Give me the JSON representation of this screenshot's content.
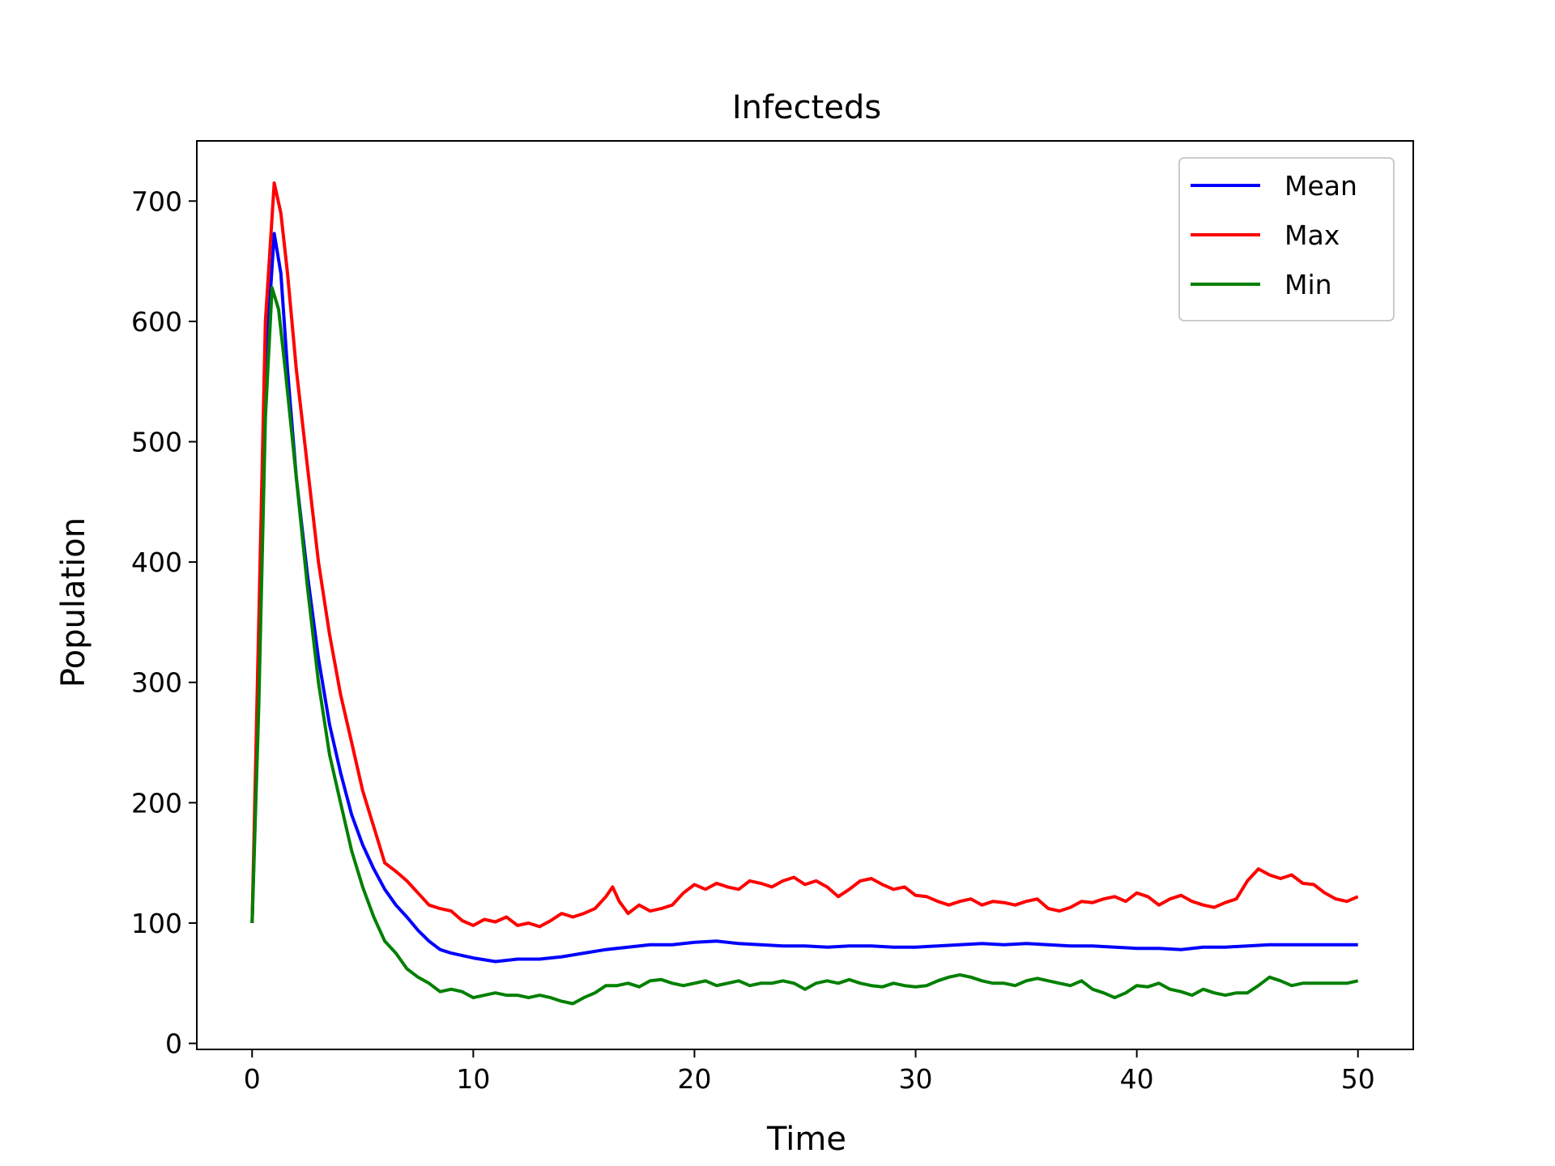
{
  "chart_data": {
    "type": "line",
    "title": "Infecteds",
    "xlabel": "Time",
    "ylabel": "Population",
    "xlim": [
      -2.5,
      52.5
    ],
    "ylim": [
      -5,
      750
    ],
    "xticks": [
      0,
      10,
      20,
      30,
      40,
      50
    ],
    "yticks": [
      0,
      100,
      200,
      300,
      400,
      500,
      600,
      700
    ],
    "grid": false,
    "legend": "top-right",
    "series": [
      {
        "name": "Mean",
        "color": "#0000ff",
        "points": [
          [
            0,
            100
          ],
          [
            0.3,
            300
          ],
          [
            0.6,
            560
          ],
          [
            1.0,
            673
          ],
          [
            1.3,
            640
          ],
          [
            1.6,
            560
          ],
          [
            2,
            470
          ],
          [
            2.5,
            390
          ],
          [
            3,
            320
          ],
          [
            3.5,
            265
          ],
          [
            4,
            225
          ],
          [
            4.5,
            190
          ],
          [
            5,
            165
          ],
          [
            5.5,
            145
          ],
          [
            6,
            128
          ],
          [
            6.5,
            115
          ],
          [
            7,
            105
          ],
          [
            7.5,
            94
          ],
          [
            8,
            85
          ],
          [
            8.5,
            78
          ],
          [
            9,
            75
          ],
          [
            10,
            71
          ],
          [
            11,
            68
          ],
          [
            12,
            70
          ],
          [
            13,
            70
          ],
          [
            14,
            72
          ],
          [
            15,
            75
          ],
          [
            16,
            78
          ],
          [
            17,
            80
          ],
          [
            18,
            82
          ],
          [
            19,
            82
          ],
          [
            20,
            84
          ],
          [
            21,
            85
          ],
          [
            22,
            83
          ],
          [
            23,
            82
          ],
          [
            24,
            81
          ],
          [
            25,
            81
          ],
          [
            26,
            80
          ],
          [
            27,
            81
          ],
          [
            28,
            81
          ],
          [
            29,
            80
          ],
          [
            30,
            80
          ],
          [
            31,
            81
          ],
          [
            32,
            82
          ],
          [
            33,
            83
          ],
          [
            34,
            82
          ],
          [
            35,
            83
          ],
          [
            36,
            82
          ],
          [
            37,
            81
          ],
          [
            38,
            81
          ],
          [
            39,
            80
          ],
          [
            40,
            79
          ],
          [
            41,
            79
          ],
          [
            42,
            78
          ],
          [
            43,
            80
          ],
          [
            44,
            80
          ],
          [
            45,
            81
          ],
          [
            46,
            82
          ],
          [
            47,
            82
          ],
          [
            48,
            82
          ],
          [
            49,
            82
          ],
          [
            50,
            82
          ]
        ]
      },
      {
        "name": "Max",
        "color": "#ff0000",
        "points": [
          [
            0,
            100
          ],
          [
            0.3,
            350
          ],
          [
            0.6,
            600
          ],
          [
            1.0,
            715
          ],
          [
            1.3,
            690
          ],
          [
            1.6,
            640
          ],
          [
            2,
            560
          ],
          [
            2.5,
            480
          ],
          [
            3,
            400
          ],
          [
            3.5,
            340
          ],
          [
            4,
            290
          ],
          [
            4.5,
            250
          ],
          [
            5,
            210
          ],
          [
            5.5,
            180
          ],
          [
            6,
            150
          ],
          [
            6.5,
            143
          ],
          [
            7,
            135
          ],
          [
            7.5,
            125
          ],
          [
            8,
            115
          ],
          [
            8.5,
            112
          ],
          [
            9,
            110
          ],
          [
            9.5,
            102
          ],
          [
            10,
            98
          ],
          [
            10.5,
            103
          ],
          [
            11,
            101
          ],
          [
            11.5,
            105
          ],
          [
            12,
            98
          ],
          [
            12.5,
            100
          ],
          [
            13,
            97
          ],
          [
            13.5,
            102
          ],
          [
            14,
            108
          ],
          [
            14.5,
            105
          ],
          [
            15,
            108
          ],
          [
            15.5,
            112
          ],
          [
            16,
            122
          ],
          [
            16.3,
            130
          ],
          [
            16.6,
            118
          ],
          [
            17,
            108
          ],
          [
            17.5,
            115
          ],
          [
            18,
            110
          ],
          [
            18.5,
            112
          ],
          [
            19,
            115
          ],
          [
            19.5,
            125
          ],
          [
            20,
            132
          ],
          [
            20.5,
            128
          ],
          [
            21,
            133
          ],
          [
            21.5,
            130
          ],
          [
            22,
            128
          ],
          [
            22.5,
            135
          ],
          [
            23,
            133
          ],
          [
            23.5,
            130
          ],
          [
            24,
            135
          ],
          [
            24.5,
            138
          ],
          [
            25,
            132
          ],
          [
            25.5,
            135
          ],
          [
            26,
            130
          ],
          [
            26.5,
            122
          ],
          [
            27,
            128
          ],
          [
            27.5,
            135
          ],
          [
            28,
            137
          ],
          [
            28.5,
            132
          ],
          [
            29,
            128
          ],
          [
            29.5,
            130
          ],
          [
            30,
            123
          ],
          [
            30.5,
            122
          ],
          [
            31,
            118
          ],
          [
            31.5,
            115
          ],
          [
            32,
            118
          ],
          [
            32.5,
            120
          ],
          [
            33,
            115
          ],
          [
            33.5,
            118
          ],
          [
            34,
            117
          ],
          [
            34.5,
            115
          ],
          [
            35,
            118
          ],
          [
            35.5,
            120
          ],
          [
            36,
            112
          ],
          [
            36.5,
            110
          ],
          [
            37,
            113
          ],
          [
            37.5,
            118
          ],
          [
            38,
            117
          ],
          [
            38.5,
            120
          ],
          [
            39,
            122
          ],
          [
            39.5,
            118
          ],
          [
            40,
            125
          ],
          [
            40.5,
            122
          ],
          [
            41,
            115
          ],
          [
            41.5,
            120
          ],
          [
            42,
            123
          ],
          [
            42.5,
            118
          ],
          [
            43,
            115
          ],
          [
            43.5,
            113
          ],
          [
            44,
            117
          ],
          [
            44.5,
            120
          ],
          [
            45,
            135
          ],
          [
            45.5,
            145
          ],
          [
            46,
            140
          ],
          [
            46.5,
            137
          ],
          [
            47,
            140
          ],
          [
            47.5,
            133
          ],
          [
            48,
            132
          ],
          [
            48.5,
            125
          ],
          [
            49,
            120
          ],
          [
            49.5,
            118
          ],
          [
            50,
            122
          ]
        ]
      },
      {
        "name": "Min",
        "color": "#008000",
        "points": [
          [
            0,
            100
          ],
          [
            0.3,
            280
          ],
          [
            0.6,
            520
          ],
          [
            0.9,
            628
          ],
          [
            1.2,
            610
          ],
          [
            1.5,
            560
          ],
          [
            2,
            470
          ],
          [
            2.5,
            380
          ],
          [
            3,
            300
          ],
          [
            3.5,
            240
          ],
          [
            4,
            200
          ],
          [
            4.5,
            160
          ],
          [
            5,
            130
          ],
          [
            5.5,
            105
          ],
          [
            6,
            85
          ],
          [
            6.5,
            75
          ],
          [
            7,
            62
          ],
          [
            7.5,
            55
          ],
          [
            8,
            50
          ],
          [
            8.5,
            43
          ],
          [
            9,
            45
          ],
          [
            9.5,
            43
          ],
          [
            10,
            38
          ],
          [
            10.5,
            40
          ],
          [
            11,
            42
          ],
          [
            11.5,
            40
          ],
          [
            12,
            40
          ],
          [
            12.5,
            38
          ],
          [
            13,
            40
          ],
          [
            13.5,
            38
          ],
          [
            14,
            35
          ],
          [
            14.5,
            33
          ],
          [
            15,
            38
          ],
          [
            15.5,
            42
          ],
          [
            16,
            48
          ],
          [
            16.5,
            48
          ],
          [
            17,
            50
          ],
          [
            17.5,
            47
          ],
          [
            18,
            52
          ],
          [
            18.5,
            53
          ],
          [
            19,
            50
          ],
          [
            19.5,
            48
          ],
          [
            20,
            50
          ],
          [
            20.5,
            52
          ],
          [
            21,
            48
          ],
          [
            21.5,
            50
          ],
          [
            22,
            52
          ],
          [
            22.5,
            48
          ],
          [
            23,
            50
          ],
          [
            23.5,
            50
          ],
          [
            24,
            52
          ],
          [
            24.5,
            50
          ],
          [
            25,
            45
          ],
          [
            25.5,
            50
          ],
          [
            26,
            52
          ],
          [
            26.5,
            50
          ],
          [
            27,
            53
          ],
          [
            27.5,
            50
          ],
          [
            28,
            48
          ],
          [
            28.5,
            47
          ],
          [
            29,
            50
          ],
          [
            29.5,
            48
          ],
          [
            30,
            47
          ],
          [
            30.5,
            48
          ],
          [
            31,
            52
          ],
          [
            31.5,
            55
          ],
          [
            32,
            57
          ],
          [
            32.5,
            55
          ],
          [
            33,
            52
          ],
          [
            33.5,
            50
          ],
          [
            34,
            50
          ],
          [
            34.5,
            48
          ],
          [
            35,
            52
          ],
          [
            35.5,
            54
          ],
          [
            36,
            52
          ],
          [
            36.5,
            50
          ],
          [
            37,
            48
          ],
          [
            37.5,
            52
          ],
          [
            38,
            45
          ],
          [
            38.5,
            42
          ],
          [
            39,
            38
          ],
          [
            39.5,
            42
          ],
          [
            40,
            48
          ],
          [
            40.5,
            47
          ],
          [
            41,
            50
          ],
          [
            41.5,
            45
          ],
          [
            42,
            43
          ],
          [
            42.5,
            40
          ],
          [
            43,
            45
          ],
          [
            43.5,
            42
          ],
          [
            44,
            40
          ],
          [
            44.5,
            42
          ],
          [
            45,
            42
          ],
          [
            45.5,
            48
          ],
          [
            46,
            55
          ],
          [
            46.5,
            52
          ],
          [
            47,
            48
          ],
          [
            47.5,
            50
          ],
          [
            48,
            50
          ],
          [
            48.5,
            50
          ],
          [
            49,
            50
          ],
          [
            49.5,
            50
          ],
          [
            50,
            52
          ]
        ]
      }
    ]
  }
}
